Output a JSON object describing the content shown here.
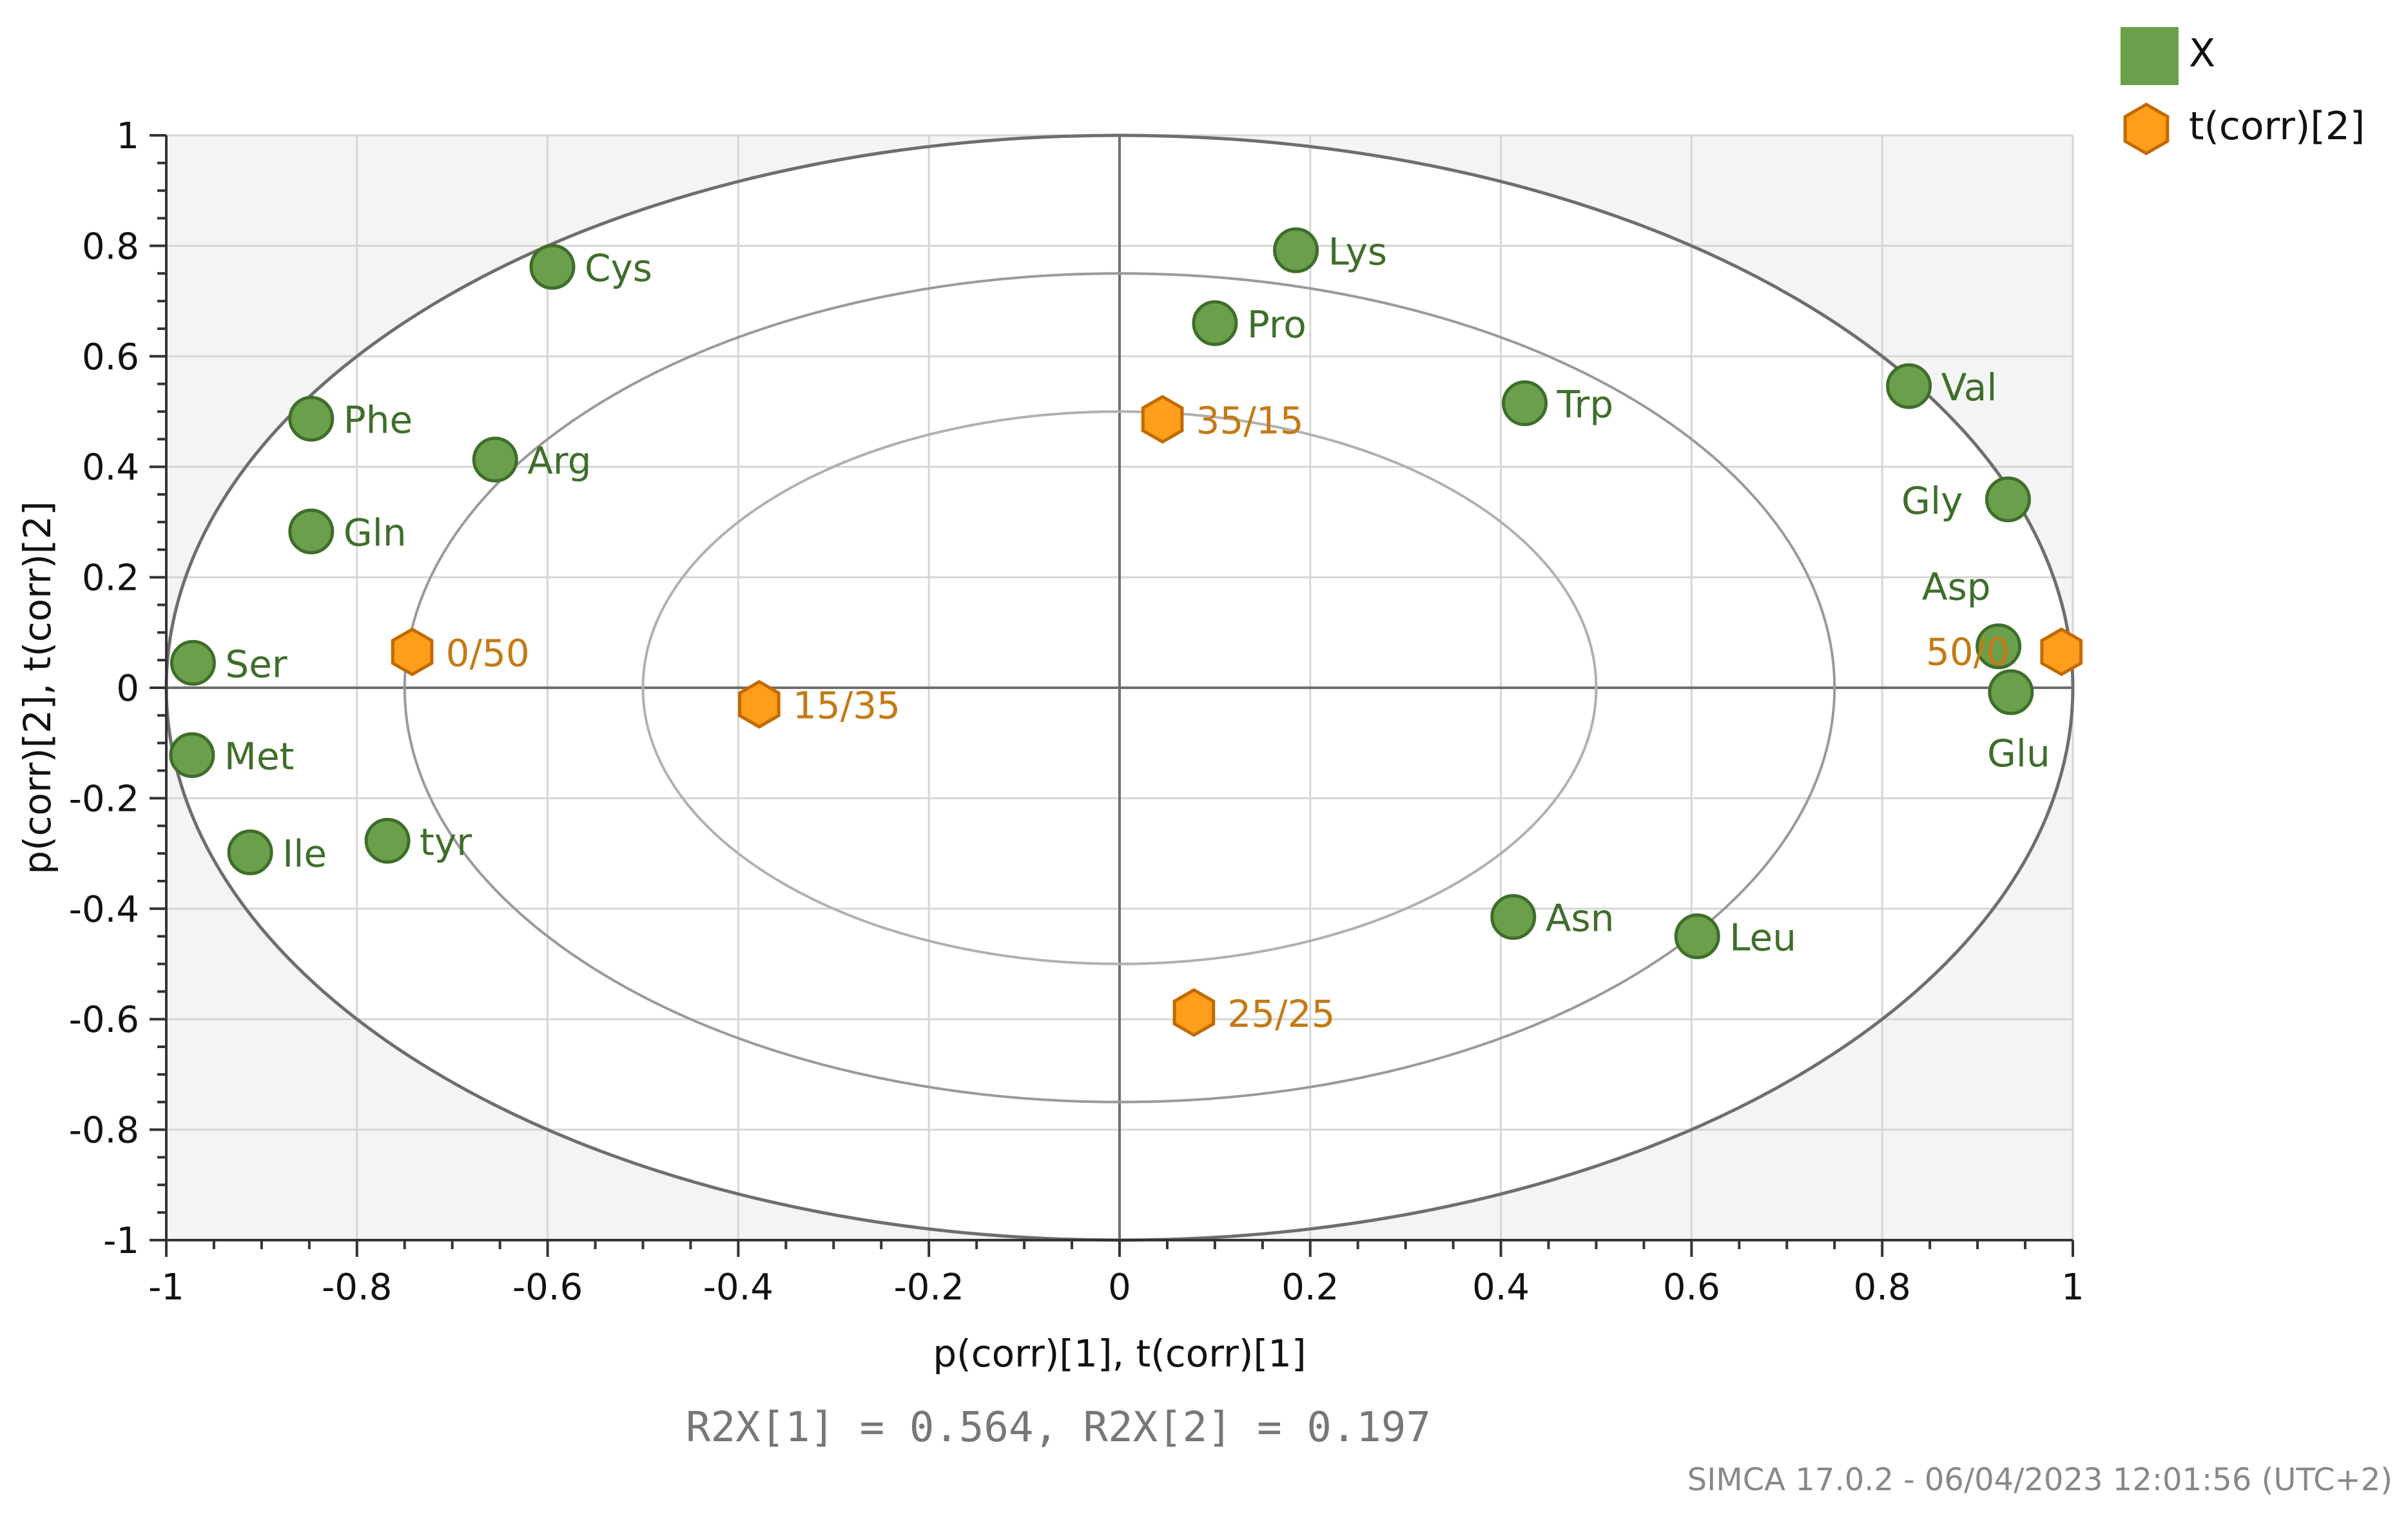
{
  "chart_data": {
    "type": "scatter",
    "xlabel": "p(corr)[1], t(corr)[1]",
    "ylabel": "p(corr)[2], t(corr)[2]",
    "xlim": [
      -1,
      1
    ],
    "ylim": [
      -1,
      1
    ],
    "xticks": [
      "-1",
      "-0.8",
      "-0.6",
      "-0.4",
      "-0.2",
      "0",
      "0.2",
      "0.4",
      "0.6",
      "0.8",
      "1"
    ],
    "yticks": [
      "1",
      "0.8",
      "0.6",
      "0.4",
      "0.2",
      "0",
      "-0.2",
      "-0.4",
      "-0.6",
      "-0.8",
      "-1"
    ],
    "grid": true,
    "ellipse_radii": [
      1.0,
      0.75,
      0.5
    ],
    "legend_position": "top-right",
    "colors": {
      "x_fill": "#6aa04c",
      "x_stroke": "#3f6e2b",
      "x_label": "#3f6e2b",
      "t_fill": "#ff9e1b",
      "t_stroke": "#c26a00",
      "t_label": "#c47a14"
    },
    "series": [
      {
        "name": "X",
        "marker": "circle",
        "points": [
          {
            "label": "Cys",
            "x": -0.595,
            "y": 0.762
          },
          {
            "label": "Phe",
            "x": -0.848,
            "y": 0.487
          },
          {
            "label": "Arg",
            "x": -0.655,
            "y": 0.413
          },
          {
            "label": "Gln",
            "x": -0.848,
            "y": 0.283
          },
          {
            "label": "Ser",
            "x": -0.972,
            "y": 0.045
          },
          {
            "label": "Met",
            "x": -0.973,
            "y": -0.122
          },
          {
            "label": "Ile",
            "x": -0.912,
            "y": -0.298
          },
          {
            "label": "tyr",
            "x": -0.768,
            "y": -0.277
          },
          {
            "label": "Lys",
            "x": 0.185,
            "y": 0.792
          },
          {
            "label": "Pro",
            "x": 0.1,
            "y": 0.66
          },
          {
            "label": "Trp",
            "x": 0.425,
            "y": 0.515
          },
          {
            "label": "Val",
            "x": 0.828,
            "y": 0.546
          },
          {
            "label": "Gly",
            "x": 0.932,
            "y": 0.341
          },
          {
            "label": "Asp",
            "x": 0.922,
            "y": 0.075
          },
          {
            "label": "Glu",
            "x": 0.935,
            "y": -0.008
          },
          {
            "label": "Asn",
            "x": 0.413,
            "y": -0.415
          },
          {
            "label": "Leu",
            "x": 0.606,
            "y": -0.45
          }
        ]
      },
      {
        "name": "t(corr)[2]",
        "marker": "hexagon",
        "points": [
          {
            "label": "0/50",
            "x": -0.742,
            "y": 0.065
          },
          {
            "label": "15/35",
            "x": -0.378,
            "y": -0.03
          },
          {
            "label": "35/15",
            "x": 0.045,
            "y": 0.486
          },
          {
            "label": "25/25",
            "x": 0.078,
            "y": -0.588
          },
          {
            "label": "50/0",
            "x": 0.988,
            "y": 0.065
          }
        ]
      }
    ],
    "annotation": "R2X[1] = 0.564, R2X[2] = 0.197"
  },
  "footer": "SIMCA 17.0.2 - 06/04/2023 12:01:56 (UTC+2)"
}
